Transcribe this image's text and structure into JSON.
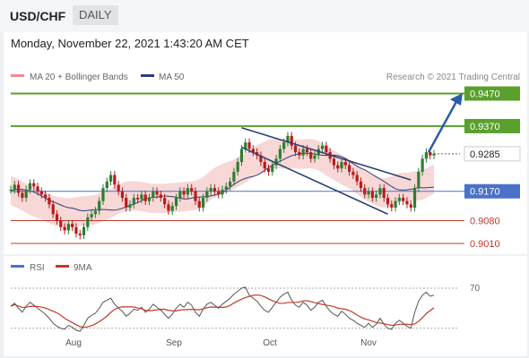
{
  "header": {
    "symbol": "USD/CHF",
    "timeframe": "DAILY"
  },
  "timestamp": "Monday, November 22, 2021 1:43:20 AM CET",
  "legend": [
    {
      "label": "MA 20 + Bollinger Bands",
      "color": "#f08a8a"
    },
    {
      "label": "MA 50",
      "color": "#2b3f73"
    }
  ],
  "credit": "Research © 2021 Trading Central",
  "colors": {
    "bull": "#2e7d32",
    "bear": "#b71c1c",
    "resistance": "#5aa02c",
    "support_blue": "#4a72c8",
    "support_red": "#c0392b",
    "channel": "#2b3f73",
    "arrow": "#2a5caa",
    "band": "#f5c6c6"
  },
  "chart_data": [
    {
      "type": "candlestick",
      "y_axis_scale": [
        0.901,
        0.947
      ],
      "x_labels": [
        "Aug",
        "Sep",
        "Oct",
        "Nov"
      ],
      "levels": [
        {
          "value": 0.947,
          "label": "0.9470",
          "kind": "resistance"
        },
        {
          "value": 0.937,
          "label": "0.9370",
          "kind": "resistance"
        },
        {
          "value": 0.9285,
          "label": "0.9285",
          "kind": "current"
        },
        {
          "value": 0.917,
          "label": "0.9170",
          "kind": "support"
        },
        {
          "value": 0.908,
          "label": "0.9080",
          "kind": "support_minor"
        },
        {
          "value": 0.901,
          "label": "0.9010",
          "kind": "support_minor"
        }
      ],
      "closes": [
        0.9175,
        0.919,
        0.9165,
        0.915,
        0.9175,
        0.9195,
        0.9185,
        0.917,
        0.916,
        0.915,
        0.913,
        0.91,
        0.908,
        0.906,
        0.905,
        0.907,
        0.906,
        0.904,
        0.9035,
        0.906,
        0.909,
        0.91,
        0.911,
        0.914,
        0.918,
        0.92,
        0.922,
        0.919,
        0.917,
        0.915,
        0.912,
        0.913,
        0.915,
        0.9145,
        0.916,
        0.914,
        0.915,
        0.917,
        0.916,
        0.915,
        0.913,
        0.911,
        0.9125,
        0.915,
        0.917,
        0.916,
        0.918,
        0.917,
        0.914,
        0.912,
        0.915,
        0.917,
        0.918,
        0.917,
        0.916,
        0.9175,
        0.9185,
        0.92,
        0.923,
        0.926,
        0.93,
        0.932,
        0.93,
        0.929,
        0.928,
        0.926,
        0.924,
        0.923,
        0.925,
        0.927,
        0.93,
        0.932,
        0.934,
        0.931,
        0.929,
        0.928,
        0.93,
        0.929,
        0.927,
        0.928,
        0.93,
        0.931,
        0.929,
        0.927,
        0.925,
        0.924,
        0.926,
        0.925,
        0.923,
        0.922,
        0.92,
        0.918,
        0.916,
        0.917,
        0.915,
        0.916,
        0.918,
        0.915,
        0.913,
        0.912,
        0.914,
        0.915,
        0.914,
        0.913,
        0.912,
        0.918,
        0.923,
        0.927,
        0.929,
        0.928,
        0.9285
      ]
    },
    {
      "type": "line",
      "title": "RSI",
      "series": [
        {
          "name": "RSI"
        },
        {
          "name": "9MA"
        }
      ],
      "levels": [
        {
          "value": 70,
          "label": "70"
        }
      ],
      "rsi": [
        52,
        55,
        50,
        46,
        52,
        56,
        53,
        50,
        47,
        44,
        40,
        35,
        32,
        30,
        29,
        33,
        31,
        28,
        27,
        33,
        40,
        43,
        45,
        50,
        56,
        58,
        60,
        54,
        50,
        47,
        42,
        45,
        49,
        48,
        51,
        46,
        49,
        54,
        51,
        48,
        44,
        40,
        44,
        50,
        54,
        51,
        56,
        53,
        46,
        42,
        49,
        54,
        56,
        53,
        50,
        54,
        57,
        60,
        64,
        67,
        70,
        71,
        63,
        60,
        57,
        52,
        48,
        46,
        51,
        56,
        61,
        64,
        66,
        58,
        53,
        51,
        56,
        53,
        48,
        51,
        56,
        58,
        52,
        47,
        44,
        42,
        47,
        44,
        40,
        38,
        35,
        33,
        31,
        35,
        31,
        34,
        40,
        34,
        30,
        29,
        35,
        38,
        35,
        32,
        30,
        46,
        57,
        63,
        66,
        62,
        63
      ]
    }
  ]
}
